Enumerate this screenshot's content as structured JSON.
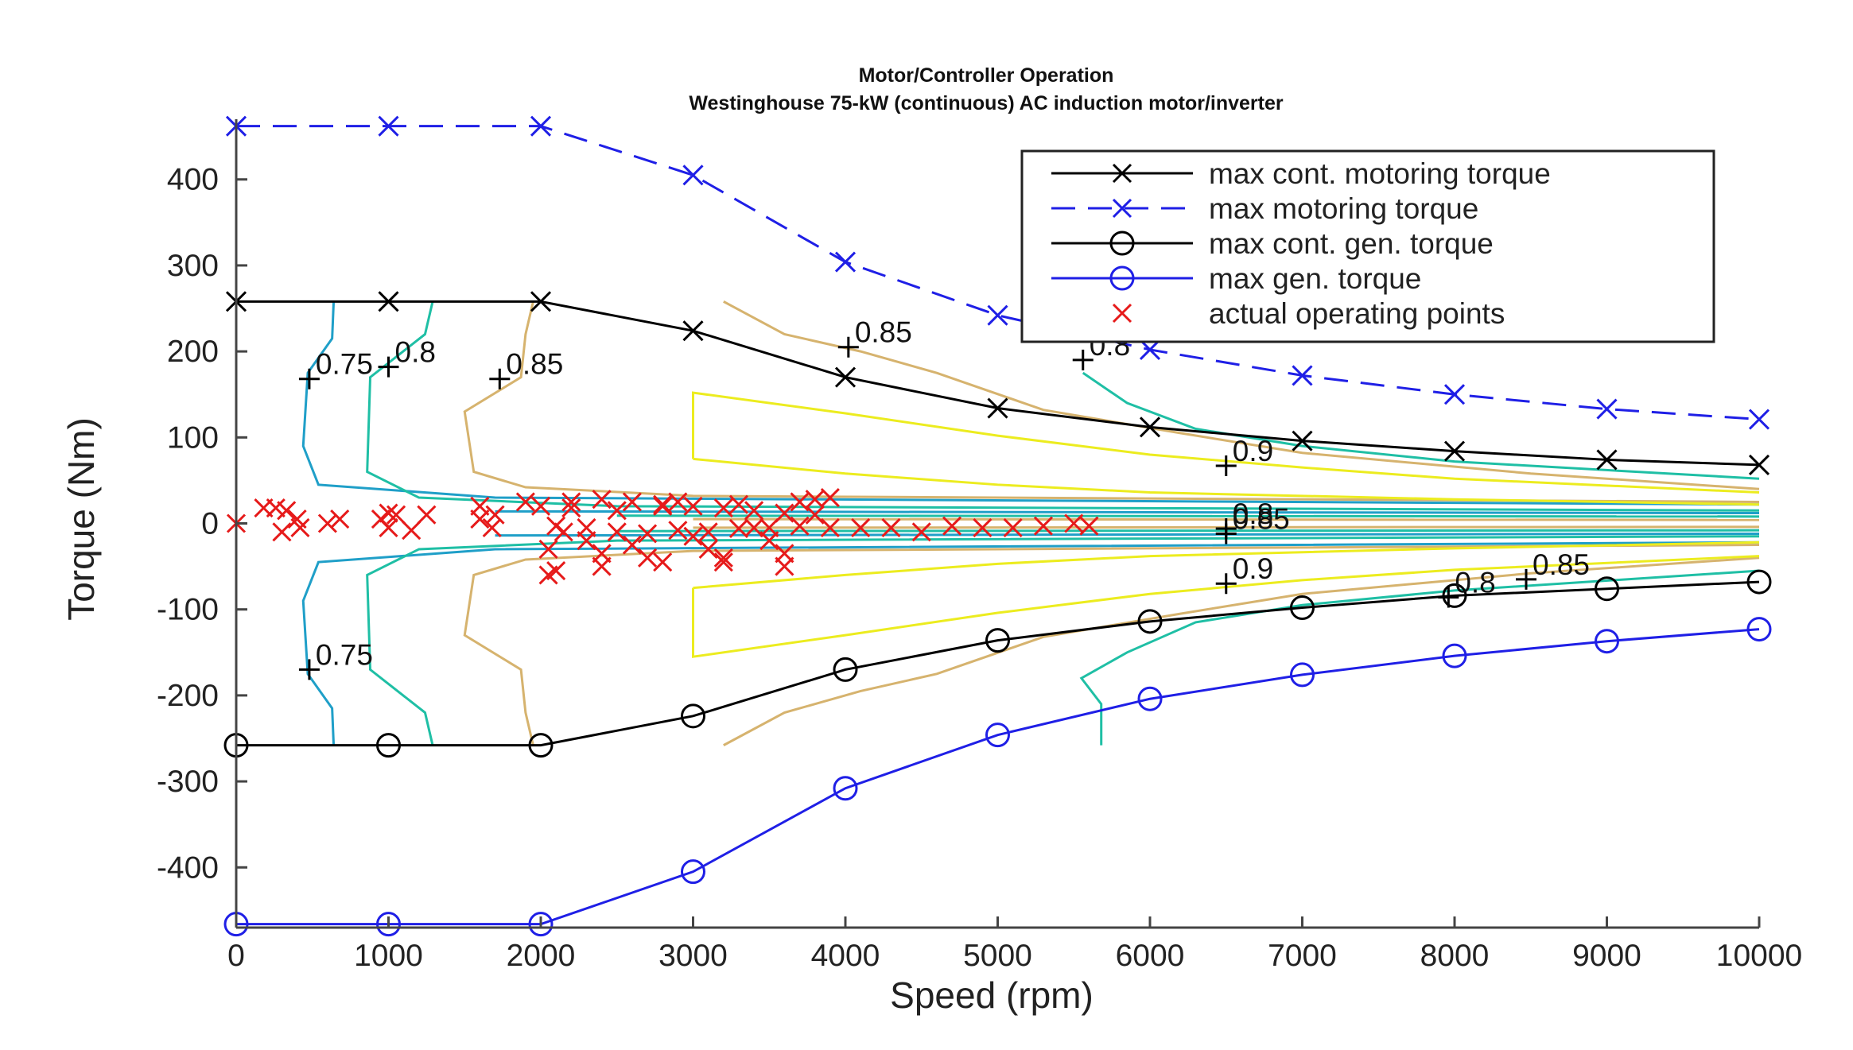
{
  "chart_data": {
    "type": "line",
    "title": "Motor/Controller Operation",
    "subtitle": "Westinghouse 75-kW (continuous) AC induction motor/inverter",
    "xlabel": "Speed (rpm)",
    "ylabel": "Torque (Nm)",
    "xlim": [
      0,
      10000
    ],
    "ylim": [
      -470,
      470
    ],
    "xticks": [
      0,
      1000,
      2000,
      3000,
      4000,
      5000,
      6000,
      7000,
      8000,
      9000,
      10000
    ],
    "xtick_labels": [
      "0",
      "1000",
      "2000",
      "3000",
      "4000",
      "5000",
      "6000",
      "7000",
      "8000",
      "9000",
      "10000"
    ],
    "yticks": [
      400,
      300,
      200,
      100,
      0,
      -100,
      -200,
      -300,
      -400
    ],
    "ytick_labels": [
      "400",
      "300",
      "200",
      "100",
      "0",
      "-100",
      "-200",
      "-300",
      "-400"
    ],
    "legend_position": "top-right",
    "colors": {
      "black": "#000000",
      "blue": "#1f1fe6",
      "red": "#e61a1a",
      "cyan": "#1f9fc8",
      "teal": "#1fbfa5",
      "tan": "#d6b36e",
      "yellow": "#ecec1f"
    },
    "series": [
      {
        "name": "max cont. motoring torque",
        "color": "#000000",
        "dash": "solid",
        "marker": "x",
        "x": [
          0,
          1000,
          2000,
          3000,
          4000,
          5000,
          6000,
          7000,
          8000,
          9000,
          10000
        ],
        "y": [
          258,
          258,
          258,
          224,
          170,
          134,
          112,
          96,
          84,
          74,
          68
        ]
      },
      {
        "name": "max motoring torque",
        "color": "#1f1fe6",
        "dash": "dashed",
        "marker": "x",
        "x": [
          0,
          1000,
          2000,
          3000,
          4000,
          5000,
          6000,
          7000,
          8000,
          9000,
          10000
        ],
        "y": [
          462,
          462,
          462,
          405,
          304,
          242,
          202,
          172,
          150,
          133,
          121
        ]
      },
      {
        "name": "max cont. gen. torque",
        "color": "#000000",
        "dash": "solid",
        "marker": "o",
        "x": [
          0,
          1000,
          2000,
          3000,
          4000,
          5000,
          6000,
          7000,
          8000,
          9000,
          10000
        ],
        "y": [
          -258,
          -258,
          -258,
          -224,
          -170,
          -136,
          -114,
          -98,
          -84,
          -76,
          -68
        ]
      },
      {
        "name": "max gen. torque",
        "color": "#1f1fe6",
        "dash": "solid",
        "marker": "o",
        "x": [
          0,
          1000,
          2000,
          3000,
          4000,
          5000,
          6000,
          7000,
          8000,
          9000,
          10000
        ],
        "y": [
          -466,
          -466,
          -466,
          -405,
          -308,
          -246,
          -204,
          -176,
          -154,
          -137,
          -123
        ]
      },
      {
        "name": "actual operating points",
        "color": "#e61a1a",
        "dash": "none",
        "marker": "x",
        "x": [
          0,
          180,
          260,
          330,
          420,
          600,
          680,
          950,
          1000,
          1050,
          1250,
          1600,
          1680,
          2000,
          2050,
          2100,
          2150,
          2200,
          2300,
          2400,
          2500,
          2600,
          2700,
          2800,
          2900,
          3000,
          3100,
          3200,
          3300,
          3400,
          3500,
          3600,
          3700,
          3800,
          3900,
          4100,
          4300,
          4500,
          4700,
          4900,
          5100,
          5300,
          5500,
          5600,
          2100,
          2300,
          2500,
          2700,
          2900,
          3100,
          3300,
          3500,
          3700,
          3900,
          1900,
          2200,
          2400,
          2600,
          2800,
          3000,
          3200,
          3400,
          3600,
          3800,
          2050,
          2400,
          2800,
          3200,
          3600,
          300,
          400,
          1000,
          1150,
          1600,
          1700
        ],
        "y": [
          0,
          18,
          18,
          15,
          -5,
          0,
          5,
          5,
          -5,
          10,
          10,
          5,
          -5,
          20,
          -30,
          -55,
          -10,
          18,
          -20,
          -35,
          15,
          -25,
          -40,
          20,
          25,
          -15,
          -30,
          -45,
          22,
          -5,
          -20,
          -35,
          25,
          28,
          30,
          -5,
          -5,
          -10,
          -3,
          -5,
          -5,
          -3,
          0,
          -3,
          -3,
          -5,
          -10,
          -12,
          -8,
          -10,
          -6,
          -5,
          -3,
          -5,
          25,
          25,
          28,
          25,
          22,
          20,
          18,
          15,
          12,
          10,
          -60,
          -50,
          -45,
          -40,
          -50,
          -10,
          5,
          12,
          -8,
          20,
          10
        ]
      }
    ],
    "contour_lines": [
      {
        "level": "0.75",
        "color": "#1f9fc8"
      },
      {
        "level": "0.8",
        "color": "#1fbfa5"
      },
      {
        "level": "0.85",
        "color": "#d6b36e"
      },
      {
        "level": "0.9",
        "color": "#ecec1f"
      }
    ],
    "contour_labels": [
      {
        "text": "0.75",
        "x": 480,
        "y": 168
      },
      {
        "text": "0.8",
        "x": 1000,
        "y": 182
      },
      {
        "text": "0.85",
        "x": 1730,
        "y": 168
      },
      {
        "text": "0.85",
        "x": 4020,
        "y": 205
      },
      {
        "text": "0.8",
        "x": 5560,
        "y": 190
      },
      {
        "text": "0.9",
        "x": 6500,
        "y": 67
      },
      {
        "text": "0.85",
        "x": 6500,
        "y": -12
      },
      {
        "text": "0.8",
        "x": 6500,
        "y": -6
      },
      {
        "text": "0.9",
        "x": 6500,
        "y": -70
      },
      {
        "text": "0.75",
        "x": 480,
        "y": -170
      },
      {
        "text": "0.8",
        "x": 7960,
        "y": -86
      },
      {
        "text": "0.85",
        "x": 8470,
        "y": -65
      }
    ],
    "legend": [
      "max cont. motoring torque",
      "max motoring torque",
      "max cont. gen. torque",
      "max gen. torque",
      "actual operating points"
    ]
  }
}
